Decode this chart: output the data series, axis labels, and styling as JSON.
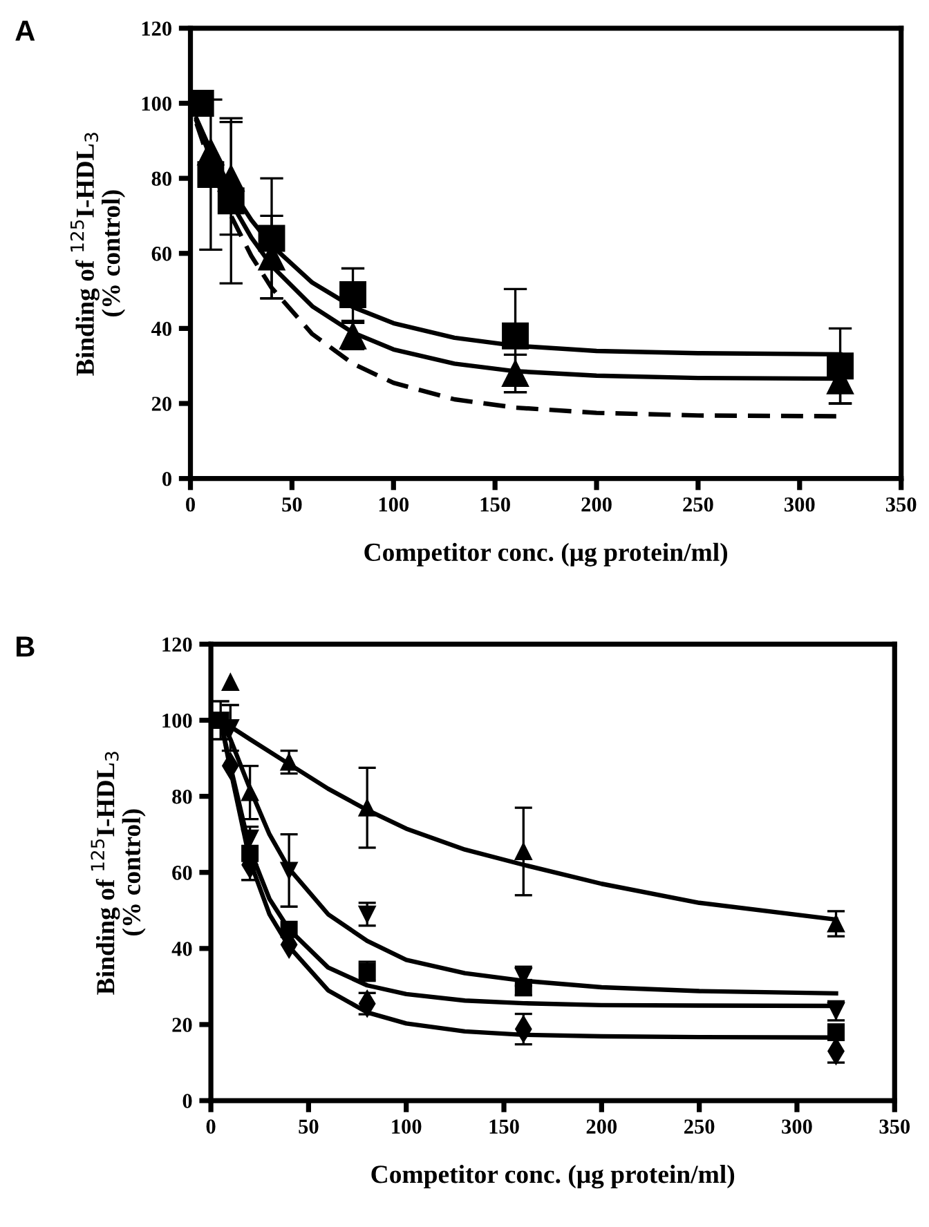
{
  "chart_data": [
    {
      "type": "scatter",
      "title": "A",
      "xlabel": "Competitor conc. (μg protein/ml)",
      "ylabel": "Binding of $^{125}$I-HDL$_{3}$\n(% control)",
      "xlim": [
        0,
        350
      ],
      "ylim": [
        0,
        120
      ],
      "xticks": [
        0,
        50,
        100,
        150,
        200,
        250,
        300,
        350
      ],
      "yticks": [
        0,
        20,
        40,
        60,
        80,
        100,
        120
      ],
      "series": [
        {
          "type": "line",
          "color": "#000000",
          "line_style": "solid",
          "marker": "none",
          "x": [
            3,
            10,
            20,
            30,
            40,
            60,
            80,
            100,
            130,
            160,
            200,
            250,
            320
          ],
          "values": [
            95.9,
            87.4,
            77.2,
            68.9,
            62.1,
            52.2,
            45.7,
            41.4,
            37.5,
            35.4,
            34,
            33.4,
            33.1
          ]
        },
        {
          "type": "line",
          "color": "#000000",
          "line_style": "solid",
          "marker": "none",
          "x": [
            3,
            10,
            20,
            30,
            40,
            60,
            80,
            100,
            130,
            160,
            200,
            250,
            320
          ],
          "values": [
            95.3,
            85.4,
            73.6,
            64.2,
            56.7,
            45.9,
            38.9,
            34.4,
            30.6,
            28.6,
            27.4,
            26.8,
            26.6
          ]
        },
        {
          "type": "line",
          "color": "#000000",
          "line_style": "dashed",
          "marker": "none",
          "x": [
            3,
            10,
            20,
            30,
            40,
            60,
            80,
            100,
            130,
            160,
            200,
            250,
            320
          ],
          "values": [
            94.6,
            83.4,
            70,
            59.3,
            50.8,
            38.5,
            30.6,
            25.5,
            21.1,
            18.9,
            17.5,
            16.8,
            16.6
          ]
        },
        {
          "type": "scatter",
          "color": "#000000",
          "marker": "square",
          "x": [
            5,
            10,
            20,
            40,
            80,
            160,
            320
          ],
          "values": [
            100,
            81,
            74,
            64,
            49,
            38,
            30
          ],
          "errors": [
            null,
            20,
            22,
            16,
            7,
            12.5,
            10
          ]
        },
        {
          "type": "scatter",
          "color": "#000000",
          "marker": "triangle",
          "x": [
            10,
            20,
            40,
            80,
            160,
            320
          ],
          "values": [
            87,
            80,
            59,
            38,
            28,
            26
          ],
          "errors": [
            null,
            15,
            11,
            3.5,
            5,
            6
          ]
        }
      ]
    },
    {
      "type": "scatter",
      "title": "B",
      "xlabel": "Competitor conc. (μg protein/ml)",
      "ylabel": "Binding of $^{125}$I-HDL$_{3}$\n(% control)",
      "xlim": [
        0,
        350
      ],
      "ylim": [
        0,
        120
      ],
      "xticks": [
        0,
        50,
        100,
        150,
        200,
        250,
        300,
        350
      ],
      "yticks": [
        0,
        20,
        40,
        60,
        80,
        100,
        120
      ],
      "series": [
        {
          "type": "line",
          "color": "#000000",
          "line_style": "solid",
          "marker": "none",
          "x": [
            5,
            20,
            40,
            60,
            80,
            100,
            130,
            160,
            200,
            250,
            320
          ],
          "values": [
            100,
            95,
            88.5,
            82,
            76.4,
            71.5,
            66,
            62,
            57,
            52,
            47.6
          ]
        },
        {
          "type": "line",
          "color": "#000000",
          "line_style": "solid",
          "marker": "none",
          "x": [
            5,
            10,
            20,
            30,
            40,
            60,
            80,
            100,
            130,
            160,
            200,
            250,
            320
          ],
          "values": [
            100,
            95,
            82,
            70,
            61,
            49,
            42,
            37,
            33.5,
            31.5,
            29.8,
            28.8,
            28.2
          ]
        },
        {
          "type": "line",
          "color": "#000000",
          "line_style": "solid",
          "marker": "none",
          "x": [
            5,
            10,
            20,
            30,
            40,
            60,
            80,
            100,
            130,
            160,
            200,
            250,
            320
          ],
          "values": [
            100,
            88,
            66,
            53,
            45,
            35,
            30.3,
            28,
            26.3,
            25.6,
            25.1,
            25,
            24.9
          ]
        },
        {
          "type": "line",
          "color": "#000000",
          "line_style": "solid",
          "marker": "none",
          "x": [
            5,
            10,
            20,
            30,
            40,
            60,
            80,
            100,
            130,
            160,
            200,
            250,
            320
          ],
          "values": [
            100,
            87,
            63,
            49,
            40.5,
            29,
            23.2,
            20.3,
            18.2,
            17.3,
            16.9,
            16.7,
            16.6
          ]
        },
        {
          "type": "scatter",
          "color": "#000000",
          "marker": "triangle",
          "x": [
            10,
            20,
            40,
            80,
            160,
            320
          ],
          "values": [
            110,
            81,
            89,
            77,
            65.5,
            46.5
          ],
          "errors": [
            null,
            7,
            3,
            10.5,
            11.5,
            3.3
          ]
        },
        {
          "type": "scatter",
          "color": "#000000",
          "marker": "triangle-down",
          "x": [
            10,
            20,
            40,
            80,
            160,
            320
          ],
          "values": [
            98,
            69,
            60.5,
            49,
            32.7,
            23.6
          ],
          "errors": [
            6,
            null,
            9.5,
            3,
            2.5,
            2.5
          ]
        },
        {
          "type": "scatter",
          "color": "#000000",
          "marker": "square",
          "x": [
            5,
            20,
            40,
            80,
            160,
            320
          ],
          "values": [
            100,
            65,
            45,
            34,
            29.7,
            18
          ],
          "errors": [
            5,
            7,
            null,
            2.5,
            2,
            2
          ]
        },
        {
          "type": "scatter",
          "color": "#000000",
          "marker": "diamond",
          "x": [
            10,
            20,
            40,
            80,
            160,
            320
          ],
          "values": [
            88,
            62,
            41,
            25.5,
            18.8,
            13
          ],
          "errors": [
            null,
            null,
            null,
            2.8,
            4,
            3
          ]
        }
      ]
    }
  ]
}
